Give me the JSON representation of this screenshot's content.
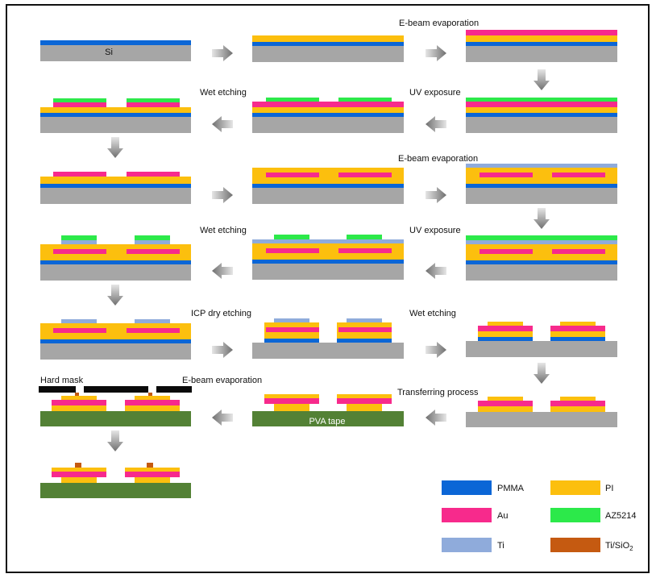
{
  "colors": {
    "si": "#a6a6a6",
    "pmma": "#0b66d6",
    "pi": "#fcbf0e",
    "au": "#f72a8c",
    "az5214": "#2ce94a",
    "ti": "#8fabdb",
    "tisio2": "#c55a11",
    "pva": "#538135",
    "mask": "#0a0a0a",
    "arrow": "#7a7a7a"
  },
  "labels": {
    "si": "Si",
    "ebeam1": "E-beam evaporation",
    "wet1": "Wet etching",
    "uv1": "UV exposure",
    "ebeam2": "E-beam evaporation",
    "wet2": "Wet etching",
    "uv2": "UV exposure",
    "icp": "ICP dry etching",
    "wet3": "Wet etching",
    "hardmask": "Hard mask",
    "ebeam3": "E-beam evaporation",
    "transfer": "Transferring process",
    "pvatape": "PVA tape"
  },
  "legend": [
    {
      "key": "pmma",
      "label": "PMMA"
    },
    {
      "key": "pi",
      "label": "PI"
    },
    {
      "key": "au",
      "label": "Au"
    },
    {
      "key": "az5214",
      "label": "AZ5214"
    },
    {
      "key": "ti",
      "label": "Ti"
    },
    {
      "key": "tisio2",
      "label": "Ti/SiO",
      "sub": "2"
    }
  ]
}
